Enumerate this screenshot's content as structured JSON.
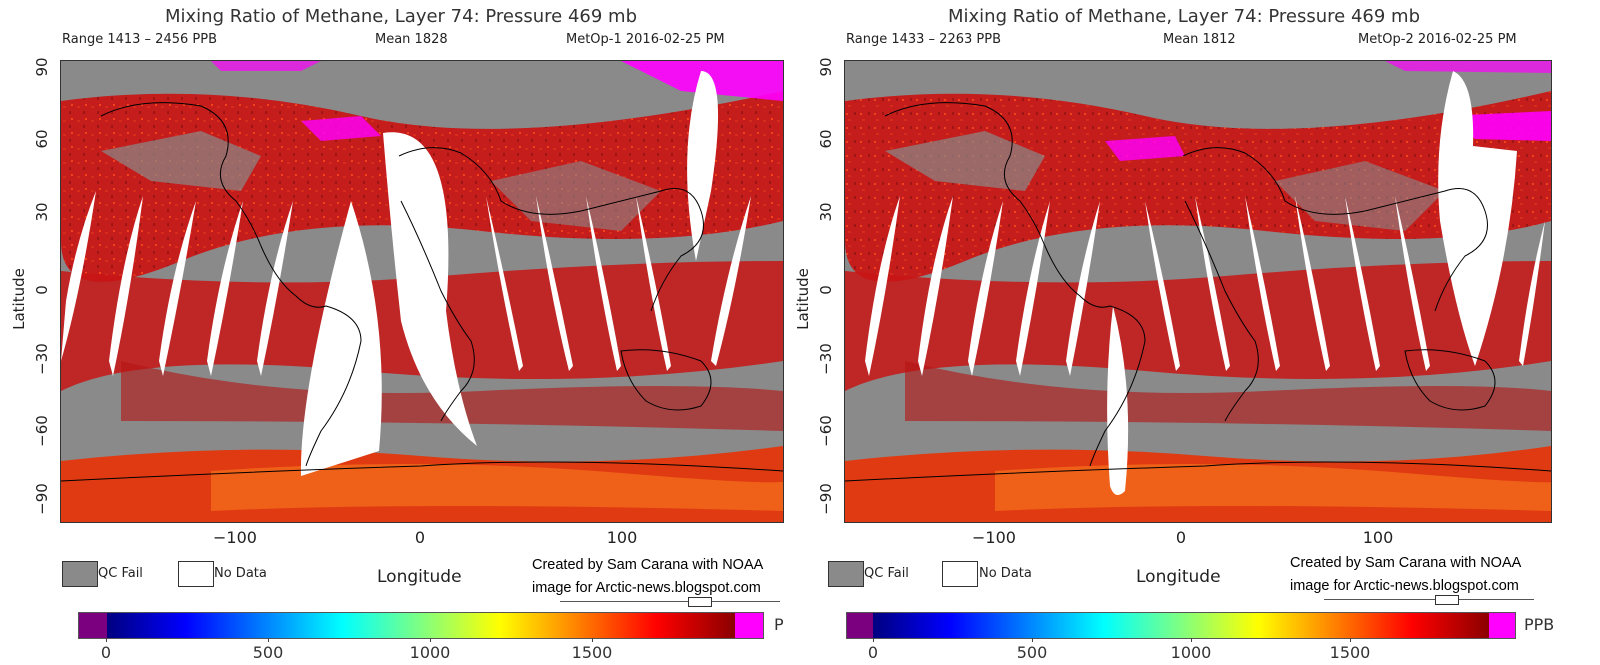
{
  "axis": {
    "ylabel": "Latitude",
    "xlabel": "Longitude",
    "yticks": [
      "90",
      "60",
      "30",
      "0",
      "−30",
      "−60",
      "−90"
    ],
    "xticks": [
      "−100",
      "0",
      "100"
    ]
  },
  "legend": {
    "qc_fail": "QC Fail",
    "no_data": "No Data"
  },
  "colors": {
    "land_qc_fail": "#8a8a8a",
    "no_data": "#ffffff",
    "low": "#7a0080",
    "high": "#ff00ff",
    "background": "#ffffff"
  },
  "colorbar": {
    "labels": [
      "0",
      "500",
      "1000",
      "1500"
    ],
    "gradient": [
      "#000080",
      "#0000ff",
      "#0080ff",
      "#00ffff",
      "#80ff80",
      "#ffff00",
      "#ff8000",
      "#ff0000",
      "#8b0000"
    ]
  },
  "panels": [
    {
      "title": "Mixing Ratio of Methane, Layer 74: Pressure 469 mb",
      "range": "Range 1413 – 2456 PPB",
      "mean": "Mean 1828",
      "source": "MetOp-1 2016-02-25 PM",
      "credit_line1": "Created by Sam Carana with NOAA",
      "credit_line2": "image for Arctic-news.blogspot.com",
      "unit": "P"
    },
    {
      "title": "Mixing Ratio of Methane, Layer 74: Pressure 469 mb",
      "range": "Range 1433 – 2263 PPB",
      "mean": "Mean 1812",
      "source": "MetOp-2 2016-02-25 PM",
      "credit_line1": "Created by Sam Carana with NOAA",
      "credit_line2": "image for Arctic-news.blogspot.com",
      "unit": "PPB"
    }
  ]
}
